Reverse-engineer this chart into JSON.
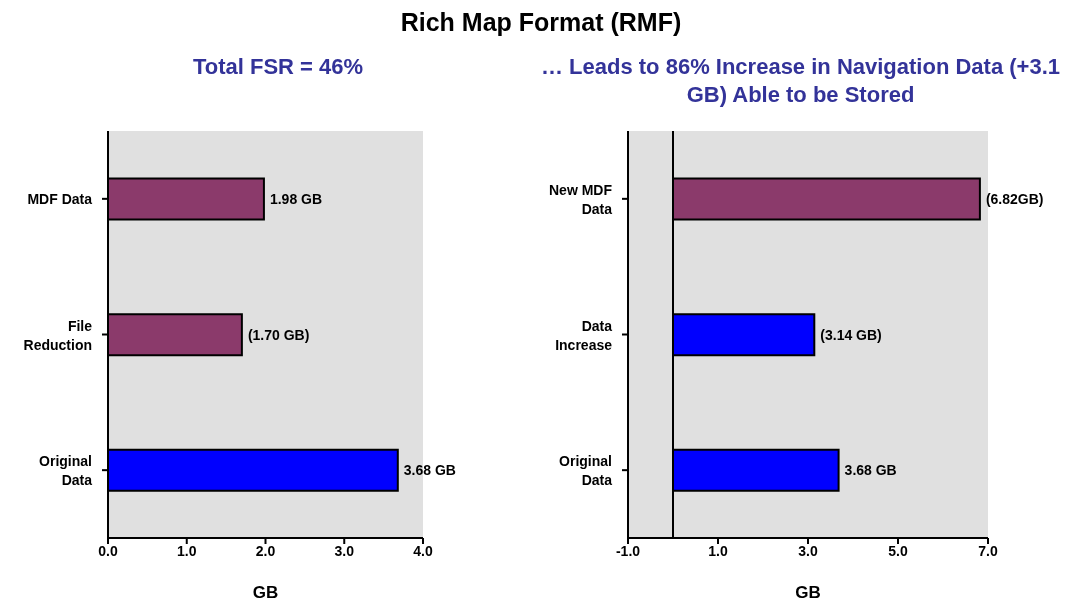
{
  "chart_data": [
    {
      "type": "bar",
      "orientation": "horizontal",
      "title": "Rich Map Format (RMF)",
      "subtitle": "Total FSR = 46%",
      "categories": [
        "MDF Data",
        "File Reduction",
        "Original Data"
      ],
      "values": [
        1.98,
        1.7,
        3.68
      ],
      "colors": [
        "#8b3a6b",
        "#8b3a6b",
        "#0000ff"
      ],
      "value_labels": [
        "1.98 GB",
        "(1.70 GB)",
        "3.68 GB"
      ],
      "xlabel": "GB",
      "xlim": [
        0,
        4
      ],
      "xticks": [
        {
          "value": 0,
          "label": "0.0"
        },
        {
          "value": 1,
          "label": "1.0"
        },
        {
          "value": 2,
          "label": "2.0"
        },
        {
          "value": 3,
          "label": "3.0"
        },
        {
          "value": 4,
          "label": "4.0"
        }
      ]
    },
    {
      "type": "bar",
      "orientation": "horizontal",
      "subtitle": "… Leads to 86% Increase in Navigation Data (+3.1 GB) Able to be Stored",
      "categories": [
        "New MDF Data",
        "Data Increase",
        "Original Data"
      ],
      "values": [
        6.82,
        3.14,
        3.68
      ],
      "colors": [
        "#8b3a6b",
        "#0000ff",
        "#0000ff"
      ],
      "value_labels": [
        "(6.82GB)",
        "(3.14 GB)",
        "3.68 GB"
      ],
      "xlabel": "GB",
      "xlim": [
        -1,
        7
      ],
      "xticks": [
        {
          "value": -1,
          "label": "-1.0"
        },
        {
          "value": 1,
          "label": "1.0"
        },
        {
          "value": 3,
          "label": "3.0"
        },
        {
          "value": 5,
          "label": "5.0"
        },
        {
          "value": 7,
          "label": "7.0"
        }
      ]
    }
  ]
}
